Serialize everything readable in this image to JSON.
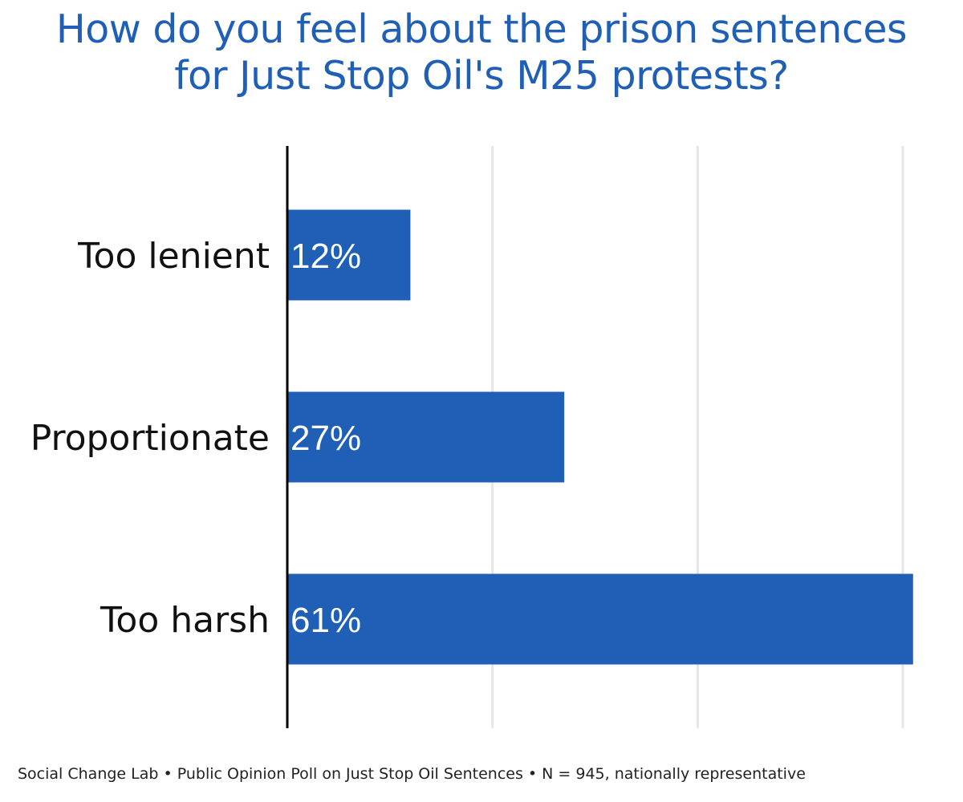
{
  "chart_data": {
    "type": "bar",
    "orientation": "horizontal",
    "title_lines": [
      "How do you feel about the prison sentences",
      "for Just Stop Oil's M25 protests?"
    ],
    "categories": [
      "Too lenient",
      "Proportionate",
      "Too harsh"
    ],
    "values": [
      12,
      27,
      61
    ],
    "value_labels": [
      "12%",
      "27%",
      "61%"
    ],
    "xlim": [
      0,
      60
    ],
    "grid_values": [
      20,
      40,
      60
    ],
    "grid": true,
    "xlabel": "",
    "ylabel": "",
    "bar_color": "#1f5fb6",
    "label_color": "#ffffff"
  },
  "footer": "Social Change Lab • Public Opinion Poll on Just Stop Oil Sentences • N = 945, nationally representative"
}
